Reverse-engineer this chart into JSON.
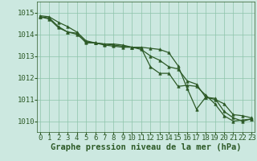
{
  "hours": [
    0,
    1,
    2,
    3,
    4,
    5,
    6,
    7,
    8,
    9,
    10,
    11,
    12,
    13,
    14,
    15,
    16,
    17,
    18,
    19,
    20,
    21,
    22,
    23
  ],
  "line1": [
    1014.8,
    1014.75,
    1014.35,
    1014.1,
    1014.0,
    1013.65,
    1013.6,
    1013.5,
    1013.45,
    1013.4,
    1013.4,
    1013.35,
    1012.5,
    1012.2,
    1012.2,
    1011.6,
    1011.65,
    1011.6,
    1011.2,
    1010.8,
    1010.25,
    1010.0,
    1010.05,
    1010.1
  ],
  "line2": [
    1014.8,
    1014.7,
    1014.3,
    1014.1,
    1014.05,
    1013.6,
    1013.6,
    1013.55,
    1013.5,
    1013.45,
    1013.4,
    1013.3,
    1013.0,
    1012.8,
    1012.5,
    1012.4,
    1011.85,
    1011.7,
    1011.1,
    1011.05,
    1010.45,
    1010.15,
    1010.0,
    1010.1
  ],
  "line3": [
    1014.85,
    1014.8,
    1014.55,
    1014.35,
    1014.1,
    1013.7,
    1013.6,
    1013.55,
    1013.55,
    1013.5,
    1013.4,
    1013.4,
    1013.35,
    1013.3,
    1013.15,
    1012.55,
    1011.5,
    1010.55,
    1011.1,
    1011.0,
    1010.8,
    1010.3,
    1010.25,
    1010.15
  ],
  "bg_color": "#cce8e0",
  "line_color": "#2d5a27",
  "grid_color": "#8dc4aa",
  "xlabel_label": "Graphe pression niveau de la mer (hPa)",
  "ylim": [
    1009.5,
    1015.5
  ],
  "yticks": [
    1010,
    1011,
    1012,
    1013,
    1014,
    1015
  ],
  "xticks": [
    0,
    1,
    2,
    3,
    4,
    5,
    6,
    7,
    8,
    9,
    10,
    11,
    12,
    13,
    14,
    15,
    16,
    17,
    18,
    19,
    20,
    21,
    22,
    23
  ],
  "fontsize_xlabel": 7.5,
  "fontsize_ticks": 6.5,
  "marker_size": 2.5,
  "linewidth": 0.9
}
